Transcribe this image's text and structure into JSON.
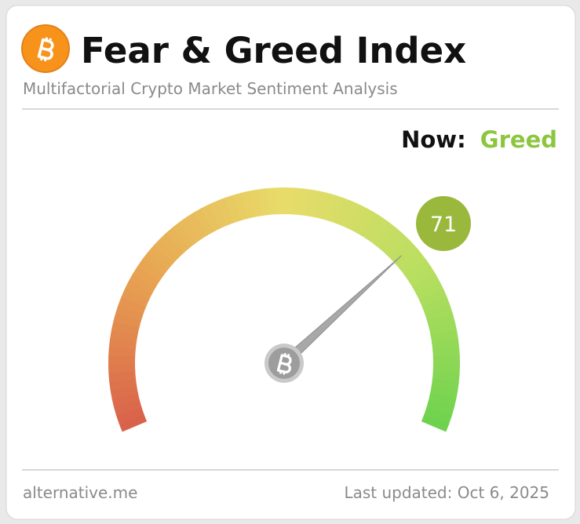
{
  "chart_data": {
    "type": "gauge",
    "title": "Fear & Greed Index",
    "subtitle": "Multifactorial Crypto Market Sentiment Analysis",
    "status_label": "Now:",
    "status": "Greed",
    "status_color": "#8cc63f",
    "value": 71,
    "value_color": "#9ab83c",
    "lim": [
      0,
      100
    ],
    "colors": [
      "#d9604a",
      "#e8a552",
      "#e8dc6a",
      "#b8de60",
      "#6cd24e"
    ],
    "source": "alternative.me",
    "updated": "Last updated: Oct 6, 2025"
  }
}
